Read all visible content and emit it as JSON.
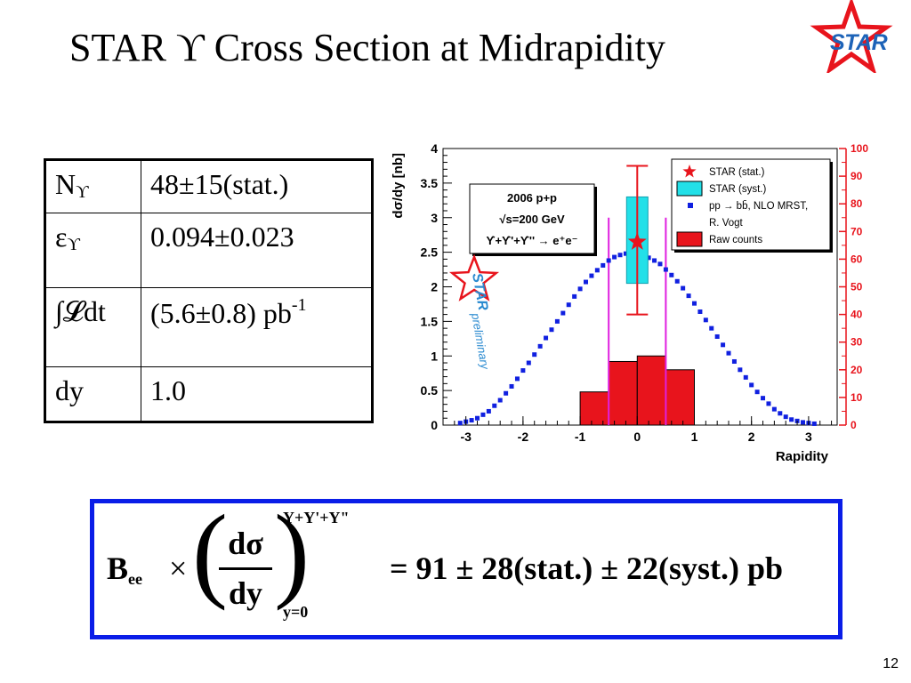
{
  "slide": {
    "title": "STAR ϒ Cross Section at Midrapidity",
    "logo_text": "STAR",
    "page_number": "12"
  },
  "table": {
    "rows": [
      {
        "symbol": "N",
        "symbol_sub": "ϒ",
        "value": "48±15(stat.)"
      },
      {
        "symbol": "ε",
        "symbol_sub": "ϒ",
        "value": "0.094±0.023"
      },
      {
        "symbol": "∫𝓛dt",
        "symbol_sub": "",
        "value": "(5.6±0.8) pb",
        "value_sup": "-1"
      },
      {
        "symbol": "dy",
        "symbol_sub": "",
        "value": "1.0"
      }
    ]
  },
  "chart_data": {
    "type": "scatter",
    "xlabel": "Rapidity",
    "ylabel": "dσ/dy [nb]",
    "xlim": [
      -3.4,
      3.5
    ],
    "ylim": [
      0,
      4
    ],
    "y2lim": [
      0,
      100
    ],
    "x_ticks": [
      -3,
      -2,
      -1,
      0,
      1,
      2,
      3
    ],
    "y_ticks": [
      0,
      0.5,
      1,
      1.5,
      2,
      2.5,
      3,
      3.5,
      4
    ],
    "y2_ticks": [
      0,
      10,
      20,
      30,
      40,
      50,
      60,
      70,
      80,
      90,
      100
    ],
    "info_box": [
      "2006 p+p",
      "√s=200 GeV",
      "ϒ+ϒ'+ϒ'' → e⁺e⁻"
    ],
    "watermark": [
      "STAR",
      "preliminary"
    ],
    "legend_position": "top-right",
    "legend": [
      {
        "label": "STAR (stat.)",
        "marker": "star",
        "color": "#e8141c"
      },
      {
        "label": "STAR (syst.)",
        "marker": "box",
        "color": "#22e0e8"
      },
      {
        "label": "pp → bb̄, NLO MRST,",
        "marker": "square",
        "color": "#1020e0"
      },
      {
        "label": "R. Vogt",
        "marker": "none",
        "color": ""
      },
      {
        "label": "Raw counts",
        "marker": "box",
        "color": "#e8141c"
      }
    ],
    "series": [
      {
        "name": "pp → bb̄, NLO MRST, R. Vogt",
        "color": "#1020e0",
        "x": [
          -3.1,
          -3.0,
          -2.9,
          -2.8,
          -2.7,
          -2.6,
          -2.5,
          -2.4,
          -2.3,
          -2.2,
          -2.1,
          -2.0,
          -1.9,
          -1.8,
          -1.7,
          -1.6,
          -1.5,
          -1.4,
          -1.3,
          -1.2,
          -1.1,
          -1.0,
          -0.9,
          -0.8,
          -0.7,
          -0.6,
          -0.5,
          -0.4,
          -0.3,
          -0.2,
          -0.1,
          0.0,
          0.1,
          0.2,
          0.3,
          0.4,
          0.5,
          0.6,
          0.7,
          0.8,
          0.9,
          1.0,
          1.1,
          1.2,
          1.3,
          1.4,
          1.5,
          1.6,
          1.7,
          1.8,
          1.9,
          2.0,
          2.1,
          2.2,
          2.3,
          2.4,
          2.5,
          2.6,
          2.7,
          2.8,
          2.9,
          3.0,
          3.1
        ],
        "y": [
          0.03,
          0.05,
          0.07,
          0.1,
          0.15,
          0.2,
          0.28,
          0.36,
          0.46,
          0.56,
          0.67,
          0.79,
          0.9,
          1.02,
          1.14,
          1.26,
          1.38,
          1.5,
          1.62,
          1.74,
          1.86,
          1.97,
          2.07,
          2.16,
          2.24,
          2.31,
          2.38,
          2.43,
          2.46,
          2.48,
          2.47,
          2.46,
          2.45,
          2.42,
          2.38,
          2.33,
          2.25,
          2.17,
          2.08,
          1.98,
          1.87,
          1.76,
          1.64,
          1.52,
          1.4,
          1.28,
          1.16,
          1.04,
          0.92,
          0.8,
          0.69,
          0.58,
          0.48,
          0.39,
          0.31,
          0.23,
          0.17,
          0.12,
          0.08,
          0.06,
          0.04,
          0.03,
          0.02
        ]
      },
      {
        "name": "Raw counts",
        "axis": "right",
        "color": "#e8141c",
        "bins": [
          [
            -1.0,
            -0.5
          ],
          [
            -0.5,
            0.0
          ],
          [
            0.0,
            0.5
          ],
          [
            0.5,
            1.0
          ]
        ],
        "values": [
          12,
          23,
          25,
          20
        ]
      }
    ],
    "star_point": {
      "x": 0,
      "y": 2.65,
      "stat_err": [
        1.1,
        1.05
      ],
      "syst_err": [
        0.65,
        0.6
      ]
    },
    "markers": {
      "vertical_lines_x": [
        -0.5,
        0.5
      ],
      "color": "#e020e0"
    }
  },
  "formula": {
    "lhs": "B",
    "lhs_sub": "ee",
    "times": "×",
    "numerator": "dσ",
    "denominator": "dy",
    "upper": "Y+Y'+Y\"",
    "lower": "y=0",
    "rhs": "= 91 ± 28(stat.) ± 22(syst.) pb"
  }
}
